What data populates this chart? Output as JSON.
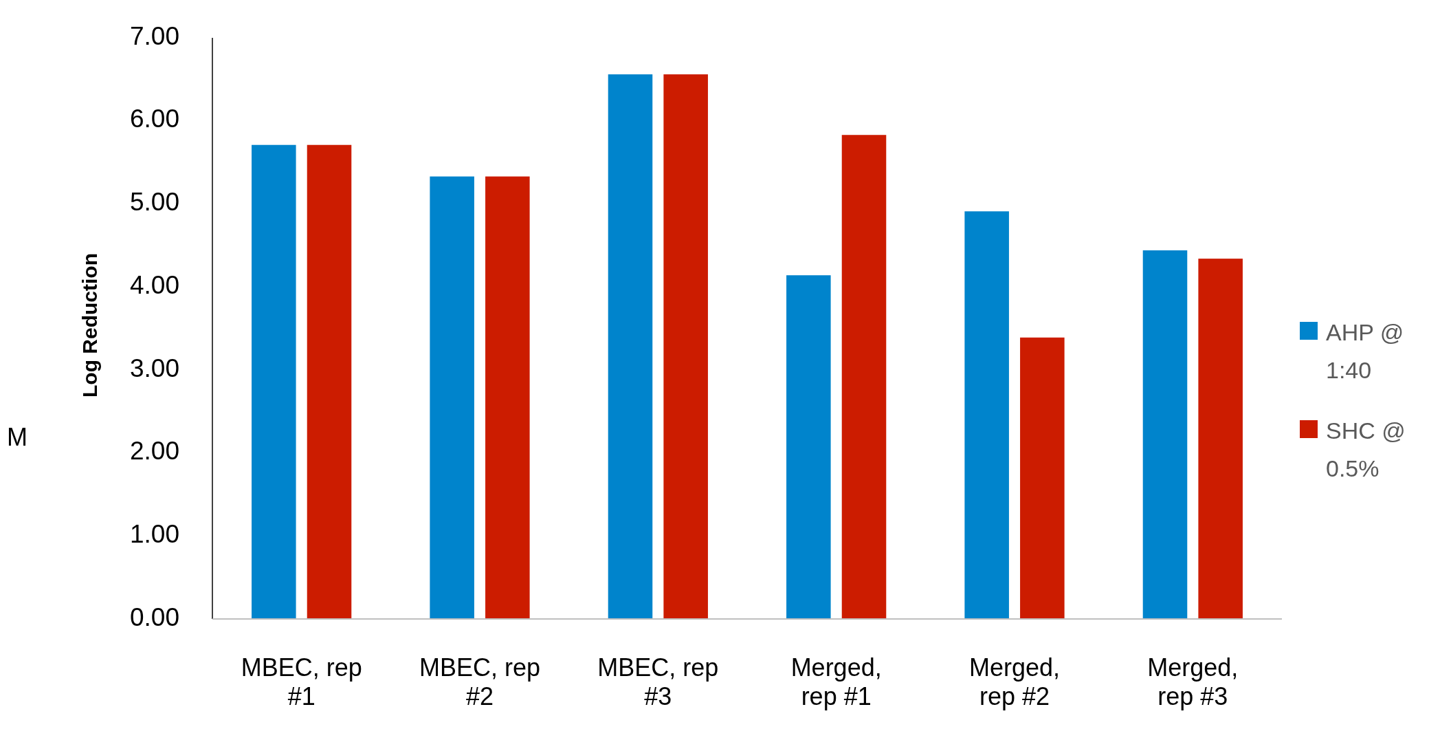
{
  "chart_data": {
    "type": "bar",
    "ylabel": "Log Reduction",
    "categories": [
      "MBEC, rep #1",
      "MBEC, rep #2",
      "MBEC, rep #3",
      "Merged, rep #1",
      "Merged, rep #2",
      "Merged, rep #3"
    ],
    "series": [
      {
        "name": "AHP @ 1:40",
        "color": "#0084cc",
        "values": [
          5.71,
          5.33,
          6.56,
          4.14,
          4.91,
          4.44
        ]
      },
      {
        "name": "SHC @ 0.5%",
        "color": "#cc1c00",
        "values": [
          5.71,
          5.33,
          6.56,
          5.83,
          3.39,
          4.34
        ]
      }
    ],
    "ylim": [
      0,
      7
    ],
    "yticks": [
      {
        "value": 0,
        "label": "0.00"
      },
      {
        "value": 1,
        "label": "1.00"
      },
      {
        "value": 2,
        "label": "2.00"
      },
      {
        "value": 3,
        "label": "3.00"
      },
      {
        "value": 4,
        "label": "4.00"
      },
      {
        "value": 5,
        "label": "5.00"
      },
      {
        "value": 6,
        "label": "6.00"
      },
      {
        "value": 7,
        "label": "7.00"
      }
    ],
    "grid": false,
    "legend": "right",
    "annotations": [
      "M"
    ]
  }
}
